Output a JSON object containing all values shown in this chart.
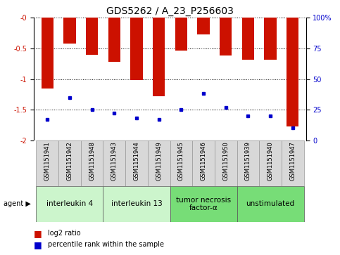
{
  "title": "GDS5262 / A_23_P256603",
  "samples": [
    "GSM1151941",
    "GSM1151942",
    "GSM1151948",
    "GSM1151943",
    "GSM1151944",
    "GSM1151949",
    "GSM1151945",
    "GSM1151946",
    "GSM1151950",
    "GSM1151939",
    "GSM1151940",
    "GSM1151947"
  ],
  "log2_ratios": [
    -1.15,
    -0.42,
    -0.6,
    -0.72,
    -1.02,
    -1.28,
    -0.54,
    -0.27,
    -0.62,
    -0.68,
    -0.68,
    -1.77
  ],
  "percentile_ranks": [
    17,
    35,
    25,
    22,
    18,
    17,
    25,
    38,
    27,
    20,
    20,
    10
  ],
  "agent_groups": [
    {
      "label": "interleukin 4",
      "start": 0,
      "end": 3,
      "color": "#ccf5cc"
    },
    {
      "label": "interleukin 13",
      "start": 3,
      "end": 6,
      "color": "#ccf5cc"
    },
    {
      "label": "tumor necrosis\nfactor-α",
      "start": 6,
      "end": 9,
      "color": "#77dd77"
    },
    {
      "label": "unstimulated",
      "start": 9,
      "end": 12,
      "color": "#77dd77"
    }
  ],
  "ylim_left": [
    -2.0,
    0.0
  ],
  "ylim_right": [
    0,
    100
  ],
  "bar_color": "#cc1100",
  "dot_color": "#0000cc",
  "background_color": "#ffffff",
  "title_fontsize": 10,
  "tick_fontsize": 7,
  "label_fontsize": 6,
  "agent_label_fontsize": 7.5,
  "legend_fontsize": 7
}
